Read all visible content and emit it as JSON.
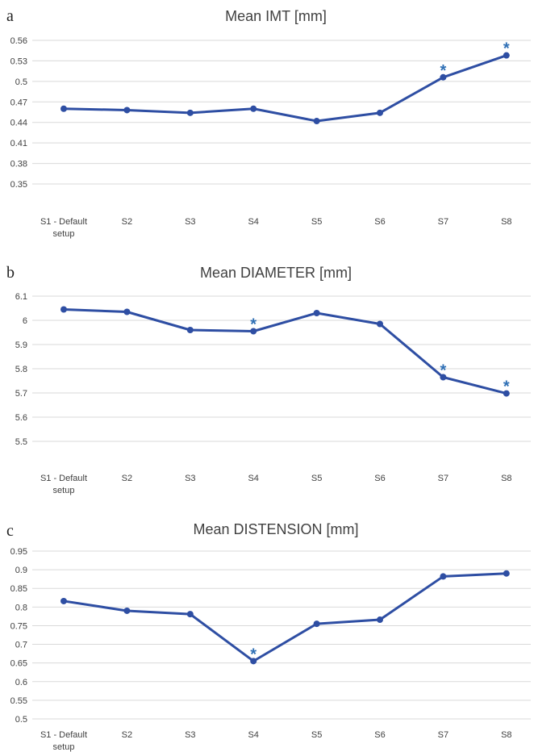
{
  "chart_data": [
    {
      "type": "line",
      "panel": "a",
      "title": "Mean IMT [mm]",
      "categories": [
        "S1 - Default setup",
        "S2",
        "S3",
        "S4",
        "S5",
        "S6",
        "S7",
        "S8"
      ],
      "category_labels": [
        [
          "S1 - Default",
          "setup"
        ],
        [
          "S2"
        ],
        [
          "S3"
        ],
        [
          "S4"
        ],
        [
          "S5"
        ],
        [
          "S6"
        ],
        [
          "S7"
        ],
        [
          "S8"
        ]
      ],
      "values": [
        0.46,
        0.458,
        0.454,
        0.46,
        0.442,
        0.454,
        0.506,
        0.538
      ],
      "ylim": [
        0.35,
        0.56
      ],
      "yticks": [
        0.35,
        0.38,
        0.41,
        0.44,
        0.47,
        0.5,
        0.53,
        0.56
      ],
      "ytick_labels": [
        "0.35",
        "0.38",
        "0.41",
        "0.44",
        "0.47",
        "0.5",
        "0.53",
        "0.56"
      ],
      "significant": [
        false,
        false,
        false,
        false,
        false,
        false,
        true,
        true
      ],
      "marker_symbol": "*",
      "grid": true
    },
    {
      "type": "line",
      "panel": "b",
      "title": "Mean DIAMETER [mm]",
      "categories": [
        "S1 - Default setup",
        "S2",
        "S3",
        "S4",
        "S5",
        "S6",
        "S7",
        "S8"
      ],
      "category_labels": [
        [
          "S1 - Default",
          "setup"
        ],
        [
          "S2"
        ],
        [
          "S3"
        ],
        [
          "S4"
        ],
        [
          "S5"
        ],
        [
          "S6"
        ],
        [
          "S7"
        ],
        [
          "S8"
        ]
      ],
      "values": [
        6.045,
        6.035,
        5.96,
        5.955,
        6.03,
        5.985,
        5.765,
        5.698
      ],
      "ylim": [
        5.5,
        6.1
      ],
      "yticks": [
        5.5,
        5.6,
        5.7,
        5.8,
        5.9,
        6.0,
        6.1
      ],
      "ytick_labels": [
        "5.5",
        "5.6",
        "5.7",
        "5.8",
        "5.9",
        "6",
        "6.1"
      ],
      "significant": [
        false,
        false,
        false,
        true,
        false,
        false,
        true,
        true
      ],
      "marker_symbol": "*",
      "grid": true
    },
    {
      "type": "line",
      "panel": "c",
      "title": "Mean DISTENSION [mm]",
      "categories": [
        "S1 - Default setup",
        "S2",
        "S3",
        "S4",
        "S5",
        "S6",
        "S7",
        "S8"
      ],
      "category_labels": [
        [
          "S1 - Default",
          "setup"
        ],
        [
          "S2"
        ],
        [
          "S3"
        ],
        [
          "S4"
        ],
        [
          "S5"
        ],
        [
          "S6"
        ],
        [
          "S7"
        ],
        [
          "S8"
        ]
      ],
      "values": [
        0.816,
        0.79,
        0.781,
        0.655,
        0.755,
        0.766,
        0.882,
        0.89
      ],
      "ylim": [
        0.5,
        0.95
      ],
      "yticks": [
        0.5,
        0.55,
        0.6,
        0.65,
        0.7,
        0.75,
        0.8,
        0.85,
        0.9,
        0.95
      ],
      "ytick_labels": [
        "0.5",
        "0.55",
        "0.6",
        "0.65",
        "0.7",
        "0.75",
        "0.8",
        "0.85",
        "0.9",
        "0.95"
      ],
      "significant": [
        false,
        false,
        false,
        true,
        false,
        false,
        false,
        false
      ],
      "marker_symbol": "*",
      "grid": true
    }
  ],
  "colors": {
    "line": "#2e4ea3",
    "marker": "#2e4ea3",
    "asterisk": "#2e6fb5",
    "grid": "#d9d9d9",
    "text": "#404040"
  }
}
